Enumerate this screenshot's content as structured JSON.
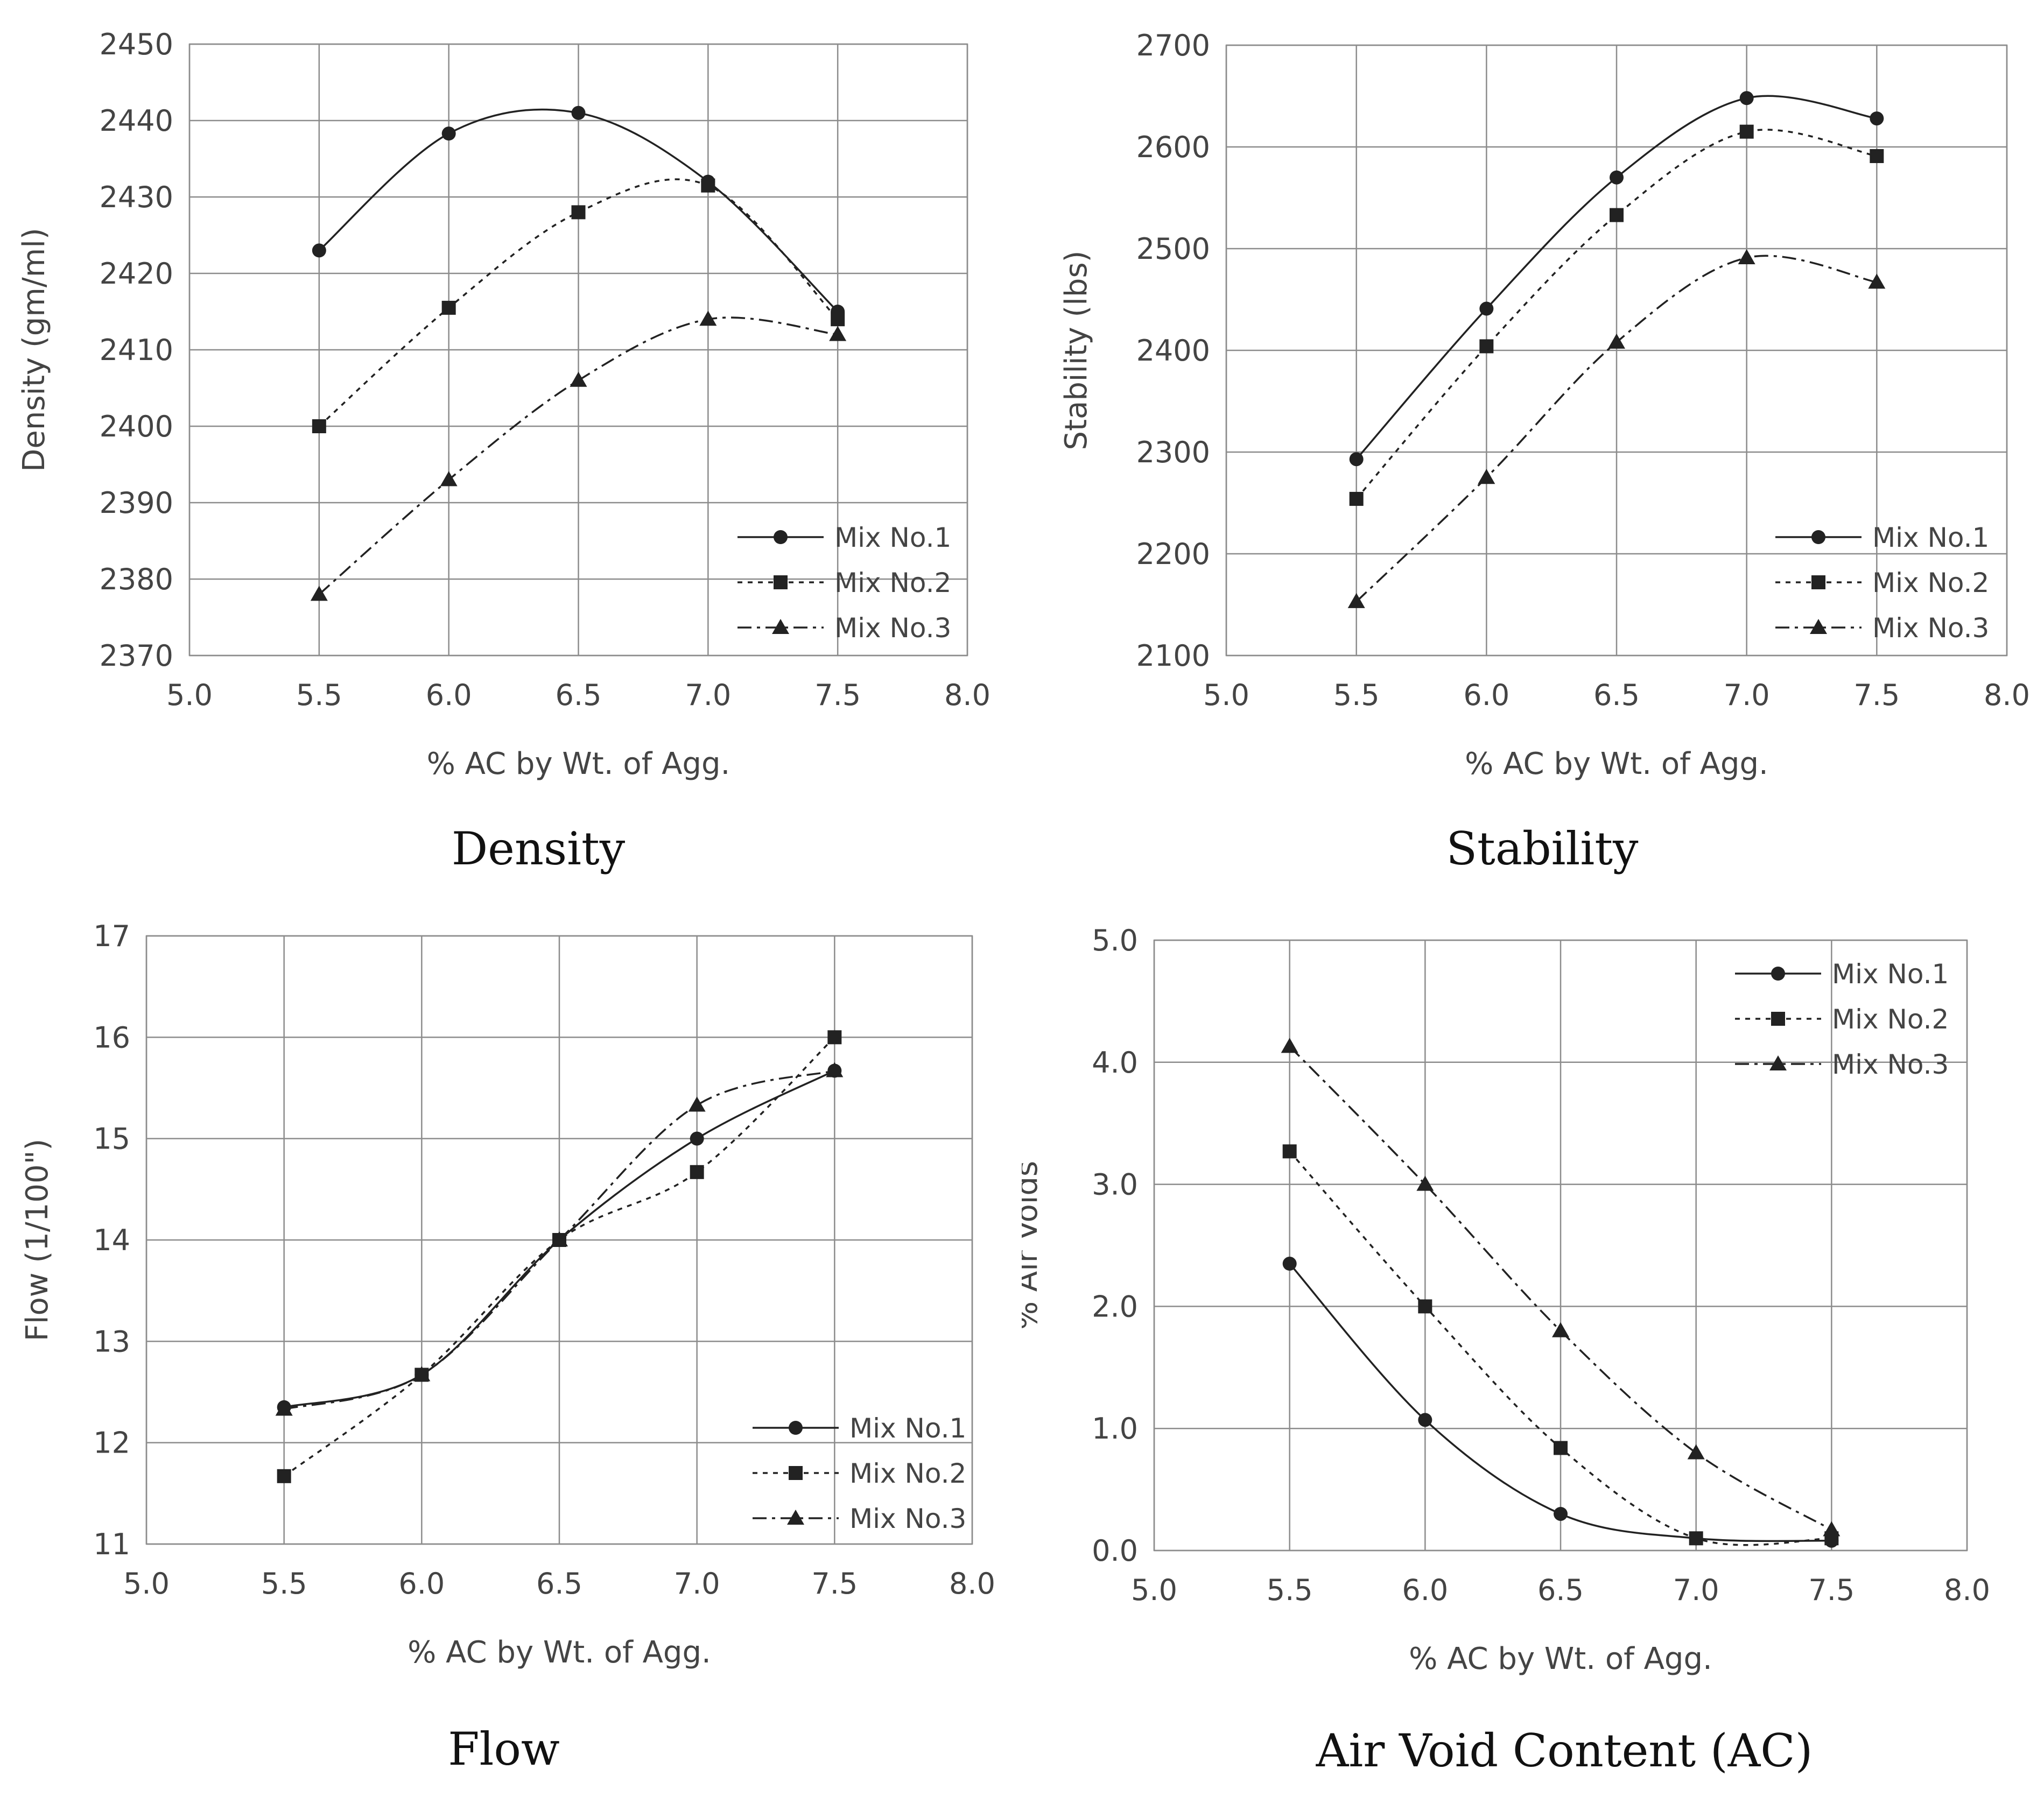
{
  "colors": {
    "line": "#222222",
    "grid": "#8c8c8c",
    "text": "#444444",
    "caption": "#111111"
  },
  "chart_data": [
    {
      "type": "line",
      "caption": "Density",
      "xlabel": "% AC by Wt. of Agg.",
      "ylabel": "Density (gm/ml)",
      "xlim": [
        5.0,
        8.0
      ],
      "ylim": [
        2370,
        2450
      ],
      "x_ticks": [
        "5.0",
        "5.5",
        "6.0",
        "6.5",
        "7.0",
        "7.5",
        "8.0"
      ],
      "y_ticks": [
        "2370",
        "2380",
        "2390",
        "2400",
        "2410",
        "2420",
        "2430",
        "2440",
        "2450"
      ],
      "grid": true,
      "legend_position": "bottom-right",
      "x": [
        5.5,
        6.0,
        6.5,
        7.0,
        7.5
      ],
      "series": [
        {
          "name": "Mix No.1",
          "marker": "circle",
          "dash": "solid",
          "values": [
            2423,
            2438.3,
            2441,
            2432,
            2415
          ]
        },
        {
          "name": "Mix No.2",
          "marker": "square",
          "dash": "dotted",
          "values": [
            2400,
            2415.5,
            2428,
            2431.5,
            2414
          ]
        },
        {
          "name": "Mix No.3",
          "marker": "triangle",
          "dash": "dashdot",
          "values": [
            2378,
            2393,
            2406,
            2414,
            2412
          ]
        }
      ]
    },
    {
      "type": "line",
      "caption": "Stability",
      "xlabel": "% AC by Wt. of Agg.",
      "ylabel": "Stability (lbs)",
      "xlim": [
        5.0,
        8.0
      ],
      "ylim": [
        2100,
        2700
      ],
      "x_ticks": [
        "5.0",
        "5.5",
        "6.0",
        "6.5",
        "7.0",
        "7.5",
        "8.0"
      ],
      "y_ticks": [
        "2100",
        "2200",
        "2300",
        "2400",
        "2500",
        "2600",
        "2700"
      ],
      "grid": true,
      "legend_position": "bottom-right",
      "x": [
        5.5,
        6.0,
        6.5,
        7.0,
        7.5
      ],
      "series": [
        {
          "name": "Mix No.1",
          "marker": "circle",
          "dash": "solid",
          "values": [
            2293,
            2441,
            2570,
            2648,
            2628
          ]
        },
        {
          "name": "Mix No.2",
          "marker": "square",
          "dash": "dotted",
          "values": [
            2254,
            2404,
            2533,
            2615,
            2591
          ]
        },
        {
          "name": "Mix No.3",
          "marker": "triangle",
          "dash": "dashdot",
          "values": [
            2153,
            2275,
            2408,
            2491,
            2467
          ]
        }
      ]
    },
    {
      "type": "line",
      "caption": "Flow",
      "xlabel": "% AC by Wt. of Agg.",
      "ylabel": "Flow (1/100\")",
      "xlim": [
        5.0,
        8.0
      ],
      "ylim": [
        11,
        17
      ],
      "x_ticks": [
        "5.0",
        "5.5",
        "6.0",
        "6.5",
        "7.0",
        "7.5",
        "8.0"
      ],
      "y_ticks": [
        "11",
        "12",
        "13",
        "14",
        "15",
        "16",
        "17"
      ],
      "grid": true,
      "legend_position": "bottom-right",
      "x": [
        5.5,
        6.0,
        6.5,
        7.0,
        7.5
      ],
      "series": [
        {
          "name": "Mix No.1",
          "marker": "circle",
          "dash": "solid",
          "values": [
            12.35,
            12.67,
            14.0,
            15.0,
            15.67
          ]
        },
        {
          "name": "Mix No.2",
          "marker": "square",
          "dash": "dotted",
          "values": [
            11.67,
            12.67,
            14.0,
            14.67,
            16.0
          ]
        },
        {
          "name": "Mix No.3",
          "marker": "triangle",
          "dash": "dashdot",
          "values": [
            12.33,
            12.67,
            14.0,
            15.33,
            15.67
          ]
        }
      ]
    },
    {
      "type": "line",
      "caption": "Air Void Content (AC)",
      "xlabel": "% AC by Wt. of Agg.",
      "ylabel": "% Air Voids",
      "xlim": [
        5.0,
        8.0
      ],
      "ylim": [
        0.0,
        5.0
      ],
      "x_ticks": [
        "5.0",
        "5.5",
        "6.0",
        "6.5",
        "7.0",
        "7.5",
        "8.0"
      ],
      "y_ticks": [
        "0.0",
        "1.0",
        "2.0",
        "3.0",
        "4.0",
        "5.0"
      ],
      "grid": true,
      "legend_position": "top-right",
      "x": [
        5.5,
        6.0,
        6.5,
        7.0,
        7.5
      ],
      "series": [
        {
          "name": "Mix No.1",
          "marker": "circle",
          "dash": "solid",
          "values": [
            2.35,
            1.07,
            0.3,
            0.1,
            0.08
          ]
        },
        {
          "name": "Mix No.2",
          "marker": "square",
          "dash": "dotted",
          "values": [
            3.27,
            2.0,
            0.84,
            0.1,
            0.1
          ]
        },
        {
          "name": "Mix No.3",
          "marker": "triangle",
          "dash": "dashdot",
          "values": [
            4.13,
            3.0,
            1.8,
            0.8,
            0.17
          ]
        }
      ]
    }
  ]
}
